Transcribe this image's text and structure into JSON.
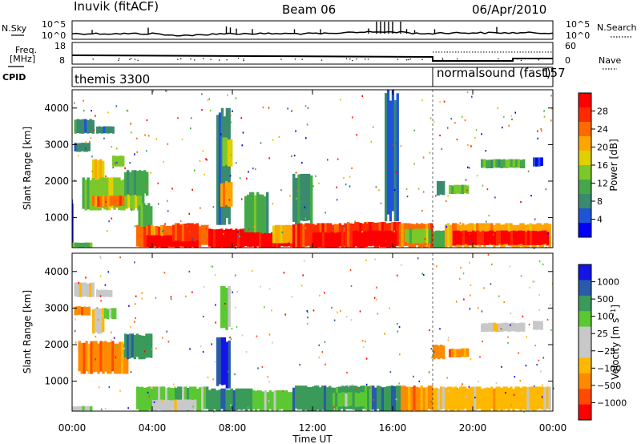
{
  "header": {
    "station": "Inuvik (fitACF)",
    "beam": "Beam 06",
    "date": "06/Apr/2010"
  },
  "params_left": {
    "nsky_label": "N.Sky",
    "freq_label_line1": "Freq.",
    "freq_label_line2": "[MHz]",
    "cpid_label": "CPID"
  },
  "params_right": {
    "nsearch_label": "N.Search",
    "nave_label": "Nave"
  },
  "noise_axis": {
    "top": "10^5",
    "bottom": "10^0"
  },
  "freq_axis": {
    "top": "18",
    "bottom": "8"
  },
  "nave_axis": {
    "top": "60",
    "bottom": "0"
  },
  "cpid": {
    "segments": [
      {
        "name": "themis",
        "id": "3300",
        "start_hour": 0,
        "end_hour": 18
      },
      {
        "name": "normalsound (fast)",
        "id": "157",
        "start_hour": 18,
        "end_hour": 24
      }
    ]
  },
  "colors": {
    "power": [
      "#0000ff",
      "#1e55d8",
      "#3a8a6e",
      "#44a84a",
      "#7cc82a",
      "#e0d000",
      "#ffa500",
      "#ff6a00",
      "#ff2a00",
      "#ff0000"
    ],
    "velocity": [
      "#ff0000",
      "#ff4a00",
      "#ff8a00",
      "#ffb800",
      "#c8c8c8",
      "#c8c8c8",
      "#5ac832",
      "#3a9a5a",
      "#2a5aaa",
      "#1414e6"
    ],
    "ground_scatter": "#9a9a9a"
  },
  "chart_data": [
    {
      "type": "heatmap",
      "panel": "power",
      "xlabel": "",
      "ylabel": "Slant Range [km]",
      "x_ticks": [
        "00:00",
        "04:00",
        "08:00",
        "12:00",
        "16:00",
        "20:00",
        "00:00"
      ],
      "xlim_hours": [
        0,
        24
      ],
      "ylim_km": [
        180,
        4500
      ],
      "y_ticks": [
        "1000",
        "2000",
        "3000",
        "4000"
      ],
      "colorbar": {
        "label": "Power [dB]",
        "ticks": [
          "4",
          "8",
          "12",
          "16",
          "20",
          "24",
          "28"
        ],
        "range": [
          0,
          30
        ]
      },
      "regions": [
        {
          "t0": 0.0,
          "t1": 0.05,
          "r0": 190,
          "r1": 1500,
          "level": 1
        },
        {
          "t0": 0.0,
          "t1": 1.0,
          "r0": 190,
          "r1": 320,
          "level": 3
        },
        {
          "t0": 0.1,
          "t1": 1.1,
          "r0": 3300,
          "r1": 3700,
          "level": 2
        },
        {
          "t0": 1.2,
          "t1": 2.1,
          "r0": 3300,
          "r1": 3500,
          "level": 2
        },
        {
          "t0": 0.1,
          "t1": 0.9,
          "r0": 2800,
          "r1": 3050,
          "level": 2
        },
        {
          "t0": 1.0,
          "t1": 1.6,
          "r0": 2050,
          "r1": 2600,
          "level": 5
        },
        {
          "t0": 2.0,
          "t1": 2.6,
          "r0": 2400,
          "r1": 2700,
          "level": 4
        },
        {
          "t0": 0.5,
          "t1": 3.6,
          "r0": 1200,
          "r1": 2100,
          "level": 4
        },
        {
          "t0": 1.0,
          "t1": 2.6,
          "r0": 1300,
          "r1": 1600,
          "level": 7
        },
        {
          "t0": 2.6,
          "t1": 3.8,
          "r0": 1600,
          "r1": 2300,
          "level": 3
        },
        {
          "t0": 3.3,
          "t1": 4.0,
          "r0": 400,
          "r1": 1400,
          "level": 3
        },
        {
          "t0": 3.2,
          "t1": 6.8,
          "r0": 200,
          "r1": 800,
          "level": 7
        },
        {
          "t0": 3.6,
          "t1": 6.3,
          "r0": 190,
          "r1": 520,
          "level": 9
        },
        {
          "t0": 5.0,
          "t1": 6.3,
          "r0": 350,
          "r1": 850,
          "level": 8
        },
        {
          "t0": 7.2,
          "t1": 7.9,
          "r0": 800,
          "r1": 4000,
          "level": 2
        },
        {
          "t0": 7.4,
          "t1": 8.0,
          "r0": 1300,
          "r1": 2000,
          "level": 6
        },
        {
          "t0": 6.8,
          "t1": 8.6,
          "r0": 190,
          "r1": 700,
          "level": 9
        },
        {
          "t0": 7.5,
          "t1": 8.0,
          "r0": 2400,
          "r1": 3200,
          "level": 4
        },
        {
          "t0": 8.6,
          "t1": 9.8,
          "r0": 300,
          "r1": 1700,
          "level": 3
        },
        {
          "t0": 8.6,
          "t1": 11.0,
          "r0": 190,
          "r1": 600,
          "level": 9
        },
        {
          "t0": 10.0,
          "t1": 11.0,
          "r0": 300,
          "r1": 800,
          "level": 6
        },
        {
          "t0": 11.0,
          "t1": 12.0,
          "r0": 800,
          "r1": 2200,
          "level": 2
        },
        {
          "t0": 11.0,
          "t1": 13.8,
          "r0": 190,
          "r1": 850,
          "level": 8
        },
        {
          "t0": 12.0,
          "t1": 13.8,
          "r0": 190,
          "r1": 600,
          "level": 9
        },
        {
          "t0": 13.6,
          "t1": 16.4,
          "r0": 190,
          "r1": 880,
          "level": 8
        },
        {
          "t0": 14.0,
          "t1": 16.2,
          "r0": 200,
          "r1": 650,
          "level": 9
        },
        {
          "t0": 15.6,
          "t1": 16.3,
          "r0": 900,
          "r1": 4500,
          "level": 1
        },
        {
          "t0": 16.3,
          "t1": 18.0,
          "r0": 190,
          "r1": 850,
          "level": 7
        },
        {
          "t0": 16.6,
          "t1": 17.9,
          "r0": 300,
          "r1": 700,
          "level": 4
        },
        {
          "t0": 18.0,
          "t1": 18.6,
          "r0": 190,
          "r1": 650,
          "level": 3
        },
        {
          "t0": 18.6,
          "t1": 23.9,
          "r0": 190,
          "r1": 850,
          "level": 6
        },
        {
          "t0": 19.0,
          "t1": 23.8,
          "r0": 250,
          "r1": 650,
          "level": 9
        },
        {
          "t0": 18.2,
          "t1": 18.6,
          "r0": 1600,
          "r1": 2000,
          "level": 2
        },
        {
          "t0": 18.8,
          "t1": 19.8,
          "r0": 1650,
          "r1": 1900,
          "level": 4
        },
        {
          "t0": 20.4,
          "t1": 22.6,
          "r0": 2350,
          "r1": 2600,
          "level": 3
        },
        {
          "t0": 23.0,
          "t1": 23.5,
          "r0": 2400,
          "r1": 2650,
          "level": 1
        }
      ]
    },
    {
      "type": "heatmap",
      "panel": "velocity",
      "xlabel": "Time UT",
      "ylabel": "Slant Range [km]",
      "x_ticks": [
        "00:00",
        "04:00",
        "08:00",
        "12:00",
        "16:00",
        "20:00",
        "00:00"
      ],
      "xlim_hours": [
        0,
        24
      ],
      "ylim_km": [
        180,
        4500
      ],
      "y_ticks": [
        "1000",
        "2000",
        "3000",
        "4000"
      ],
      "colorbar": {
        "label": "Velocity [m s^-1]",
        "ticks": [
          "1000",
          "500",
          "100",
          "25",
          "−25",
          "−100",
          "−500",
          "−1000"
        ],
        "range": [
          -1000,
          1000
        ]
      },
      "regions": [
        {
          "t0": 0.0,
          "t1": 1.0,
          "r0": 190,
          "r1": 320,
          "level": 5
        },
        {
          "t0": 0.1,
          "t1": 1.1,
          "r0": 3300,
          "r1": 3700,
          "level": 4
        },
        {
          "t0": 1.2,
          "t1": 2.0,
          "r0": 3300,
          "r1": 3500,
          "level": 4
        },
        {
          "t0": 0.1,
          "t1": 0.9,
          "r0": 2800,
          "r1": 3050,
          "level": 2
        },
        {
          "t0": 1.0,
          "t1": 1.6,
          "r0": 2300,
          "r1": 3000,
          "level": 4
        },
        {
          "t0": 1.6,
          "t1": 2.2,
          "r0": 2700,
          "r1": 3000,
          "level": 6
        },
        {
          "t0": 0.3,
          "t1": 2.8,
          "r0": 1200,
          "r1": 2100,
          "level": 2
        },
        {
          "t0": 2.6,
          "t1": 4.0,
          "r0": 1600,
          "r1": 2300,
          "level": 7
        },
        {
          "t0": 3.2,
          "t1": 6.8,
          "r0": 190,
          "r1": 850,
          "level": 6
        },
        {
          "t0": 4.0,
          "t1": 6.2,
          "r0": 190,
          "r1": 500,
          "level": 4
        },
        {
          "t0": 7.2,
          "t1": 7.9,
          "r0": 800,
          "r1": 2200,
          "level": 8
        },
        {
          "t0": 7.4,
          "t1": 7.9,
          "r0": 2400,
          "r1": 3600,
          "level": 6
        },
        {
          "t0": 6.8,
          "t1": 9.0,
          "r0": 190,
          "r1": 800,
          "level": 7
        },
        {
          "t0": 9.0,
          "t1": 11.0,
          "r0": 190,
          "r1": 750,
          "level": 6
        },
        {
          "t0": 11.0,
          "t1": 16.4,
          "r0": 190,
          "r1": 880,
          "level": 7
        },
        {
          "t0": 13.0,
          "t1": 14.6,
          "r0": 300,
          "r1": 700,
          "level": 6
        },
        {
          "t0": 16.4,
          "t1": 18.0,
          "r0": 190,
          "r1": 880,
          "level": 2
        },
        {
          "t0": 18.0,
          "t1": 23.9,
          "r0": 190,
          "r1": 850,
          "level": 3
        },
        {
          "t0": 18.0,
          "t1": 18.6,
          "r0": 1600,
          "r1": 2000,
          "level": 2
        },
        {
          "t0": 18.8,
          "t1": 19.8,
          "r0": 1650,
          "r1": 1900,
          "level": 2
        },
        {
          "t0": 20.4,
          "t1": 22.6,
          "r0": 2350,
          "r1": 2600,
          "level": 4
        },
        {
          "t0": 23.0,
          "t1": 23.5,
          "r0": 2400,
          "r1": 2650,
          "level": 4
        }
      ]
    }
  ]
}
